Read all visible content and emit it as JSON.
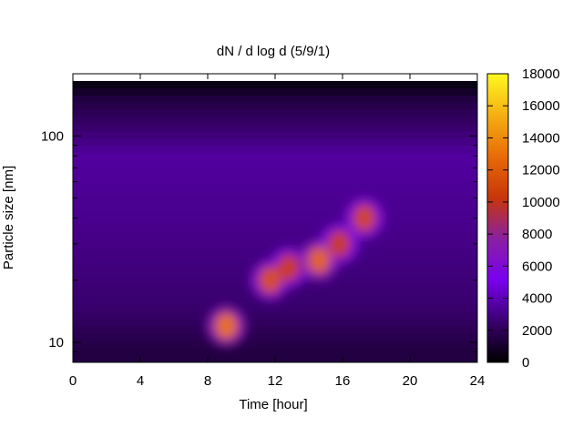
{
  "chart_data": {
    "type": "heatmap",
    "title": "dN / d log d (5/9/1)",
    "xlabel": "Time [hour]",
    "ylabel": "Particle size [nm]",
    "xlim": [
      0,
      24
    ],
    "ylim": [
      8,
      200
    ],
    "y_scale": "log",
    "x_ticks": [
      0,
      4,
      8,
      12,
      16,
      20,
      24
    ],
    "x_tick_labels": [
      "0",
      "4",
      "8",
      "12",
      "16",
      "20",
      "24"
    ],
    "y_ticks": [
      10,
      100
    ],
    "y_tick_labels": [
      "10",
      "100"
    ],
    "colorbar": {
      "range": [
        0,
        18000
      ],
      "ticks": [
        0,
        2000,
        4000,
        6000,
        8000,
        10000,
        12000,
        14000,
        16000,
        18000
      ],
      "tick_labels": [
        "0",
        "2000",
        "4000",
        "6000",
        "8000",
        "10000",
        "12000",
        "14000",
        "16000",
        "18000"
      ],
      "palette": [
        "#000000",
        "#3a0070",
        "#7a00f0",
        "#8a20a0",
        "#c8360a",
        "#e86c08",
        "#f5b012",
        "#fff820"
      ]
    },
    "background": {
      "description_values": "size distribution background level by size band",
      "bands": [
        {
          "size_nm": 9,
          "value": 1500
        },
        {
          "size_nm": 15,
          "value": 2500
        },
        {
          "size_nm": 30,
          "value": 3000
        },
        {
          "size_nm": 80,
          "value": 3500
        },
        {
          "size_nm": 150,
          "value": 1500
        },
        {
          "size_nm": 190,
          "value": 0
        }
      ]
    },
    "events": [
      {
        "time_hour": 9.1,
        "size_nm": 12,
        "value": 13000
      },
      {
        "time_hour": 11.7,
        "size_nm": 20,
        "value": 11500
      },
      {
        "time_hour": 12.8,
        "size_nm": 23,
        "value": 10500
      },
      {
        "time_hour": 14.6,
        "size_nm": 25,
        "value": 12500
      },
      {
        "time_hour": 15.8,
        "size_nm": 30,
        "value": 10500
      },
      {
        "time_hour": 17.3,
        "size_nm": 40,
        "value": 11000
      }
    ]
  }
}
